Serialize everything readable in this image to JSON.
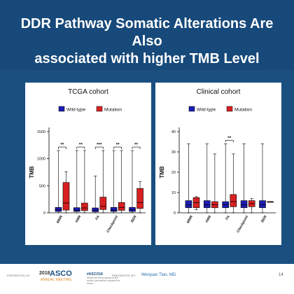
{
  "slide": {
    "title_line1": "DDR Pathway Somatic Alterations Are Also",
    "title_line2": "associated with higher TMB Level",
    "page_number": "14"
  },
  "footer": {
    "presented_at": "PRESENTED AT:",
    "meeting_year": "2018",
    "meeting_brand": "ASCO",
    "meeting_name": "ANNUAL MEETING",
    "hashtag": "#ASCO18",
    "hashtag_sub": "Slides are the property of the author, permission required for reuse.",
    "presented_by": "PRESENTED BY:",
    "presenter": "Wenjuan Tian, MD"
  },
  "colors": {
    "wild_type": "#1c1cb3",
    "mutation": "#d92020",
    "slide_bg": "#1a4f80"
  },
  "chart_data": [
    {
      "type": "box",
      "title": "TCGA cohort",
      "ylabel": "TMB",
      "ylim": [
        0,
        1500
      ],
      "yticks": [
        0,
        500,
        1000,
        1500
      ],
      "categories": [
        "MMR",
        "HRR",
        "FA",
        "Checkpoint",
        "BER"
      ],
      "legend": [
        "Wild-type",
        "Mutation"
      ],
      "legend_position": "top",
      "significance": [
        "**",
        "**",
        "***",
        "**",
        "**"
      ],
      "series": [
        {
          "name": "Wild-type",
          "boxes": [
            {
              "min": 0,
              "q1": 25,
              "median": 55,
              "q3": 100,
              "max": 1150
            },
            {
              "min": 0,
              "q1": 25,
              "median": 50,
              "q3": 95,
              "max": 1150
            },
            {
              "min": 0,
              "q1": 20,
              "median": 50,
              "q3": 90,
              "max": 680
            },
            {
              "min": 0,
              "q1": 25,
              "median": 50,
              "q3": 100,
              "max": 1150
            },
            {
              "min": 0,
              "q1": 25,
              "median": 55,
              "q3": 100,
              "max": 1150
            }
          ]
        },
        {
          "name": "Mutation",
          "boxes": [
            {
              "min": 0,
              "q1": 50,
              "median": 180,
              "q3": 560,
              "max": 760
            },
            {
              "min": 0,
              "q1": 40,
              "median": 90,
              "q3": 180,
              "max": 1150
            },
            {
              "min": 0,
              "q1": 60,
              "median": 120,
              "q3": 290,
              "max": 1150
            },
            {
              "min": 0,
              "q1": 45,
              "median": 100,
              "q3": 190,
              "max": 1150
            },
            {
              "min": 0,
              "q1": 80,
              "median": 190,
              "q3": 450,
              "max": 580
            }
          ]
        }
      ]
    },
    {
      "type": "box",
      "title": "Clinical cohort",
      "ylabel": "TMB",
      "ylim": [
        0,
        40
      ],
      "yticks": [
        0,
        10,
        20,
        30,
        40
      ],
      "categories": [
        "MMR",
        "HRR",
        "FA",
        "Checkpoint",
        "BER"
      ],
      "legend": [
        "Wild-type",
        "Mutation"
      ],
      "legend_position": "top",
      "significance": [
        "",
        "",
        "**",
        "",
        ""
      ],
      "series": [
        {
          "name": "Wild-type",
          "boxes": [
            {
              "min": 0,
              "q1": 2.5,
              "median": 4,
              "q3": 6,
              "max": 34
            },
            {
              "min": 0,
              "q1": 2.5,
              "median": 4,
              "q3": 6,
              "max": 34
            },
            {
              "min": 0,
              "q1": 2.5,
              "median": 4,
              "q3": 5.5,
              "max": 34
            },
            {
              "min": 0,
              "q1": 2.5,
              "median": 4,
              "q3": 6,
              "max": 34
            },
            {
              "min": 0,
              "q1": 2.5,
              "median": 4,
              "q3": 6,
              "max": 34
            }
          ]
        },
        {
          "name": "Mutation",
          "boxes": [
            {
              "min": 1.5,
              "q1": 2.5,
              "median": 5,
              "q3": 7.5,
              "max": 8
            },
            {
              "min": 0,
              "q1": 2.5,
              "median": 4,
              "q3": 5.5,
              "max": 29
            },
            {
              "min": 0,
              "q1": 3,
              "median": 5.5,
              "q3": 9,
              "max": 29
            },
            {
              "min": 0,
              "q1": 3,
              "median": 4.5,
              "q3": 6,
              "max": 7
            },
            {
              "min": 5.5,
              "q1": 5.5,
              "median": 5.5,
              "q3": 5.5,
              "max": 5.5
            }
          ]
        }
      ]
    }
  ]
}
